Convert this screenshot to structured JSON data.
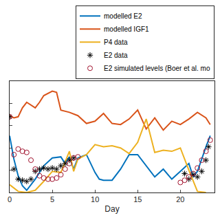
{
  "chart_data": {
    "type": "line",
    "x_label": "Day",
    "xlim": [
      0,
      24
    ],
    "xticks": [
      0,
      5,
      10,
      15,
      20
    ],
    "ylim": [
      0,
      1
    ],
    "yticks": [
      0,
      0.2,
      0.4,
      0.6,
      0.8,
      1
    ],
    "tick_labels": "x",
    "grid": false,
    "legend": "top right",
    "series": [
      {
        "name": "modelled E2",
        "type": "line",
        "color": "#0072BD",
        "line_style": "solid",
        "marker": "none",
        "x": [
          0,
          0.5,
          1,
          1.5,
          2,
          3,
          4,
          5,
          6,
          6.5,
          7,
          7.5,
          8,
          9,
          10,
          10.5,
          11,
          12,
          13,
          14,
          15,
          16,
          17,
          18,
          19,
          20,
          21,
          21.5,
          22,
          23,
          23.5
        ],
        "values": [
          0.51,
          0.3,
          0.15,
          0.06,
          0.02,
          0.12,
          0.24,
          0.31,
          0.32,
          0.26,
          0.32,
          0.21,
          0.31,
          0.34,
          0.18,
          0.12,
          0.11,
          0.11,
          0.21,
          0.34,
          0.34,
          0.24,
          0.14,
          0.21,
          0.12,
          0.19,
          0.26,
          0.14,
          0.19,
          0.41,
          0.51
        ]
      },
      {
        "name": "modelled IGF1",
        "type": "line",
        "color": "#D95319",
        "line_style": "solid",
        "marker": "none",
        "x": [
          0,
          0.5,
          1,
          1.5,
          2,
          3,
          3.5,
          4,
          5,
          5.5,
          6,
          7,
          8,
          9,
          10,
          11,
          12,
          13,
          14,
          15,
          16,
          17,
          18,
          19,
          20,
          21,
          22,
          23,
          23.5
        ],
        "values": [
          0.69,
          0.67,
          0.68,
          0.76,
          0.81,
          0.76,
          0.81,
          0.87,
          0.91,
          0.9,
          0.74,
          0.72,
          0.69,
          0.62,
          0.64,
          0.71,
          0.62,
          0.61,
          0.66,
          0.74,
          0.57,
          0.67,
          0.56,
          0.64,
          0.61,
          0.66,
          0.72,
          0.67,
          0.61
        ]
      },
      {
        "name": "P4 data",
        "type": "line",
        "color": "#EDB120",
        "line_style": "solid",
        "marker": "none",
        "x": [
          0,
          1,
          2,
          3,
          4,
          5,
          6,
          7,
          7.5,
          8,
          9,
          10,
          11,
          12,
          13,
          14,
          15,
          16,
          17,
          18,
          19,
          20,
          21,
          22,
          23
        ],
        "values": [
          0.07,
          0.01,
          0.0,
          0.02,
          0.1,
          0.19,
          0.18,
          0.37,
          0.19,
          0.3,
          0.34,
          0.43,
          0.41,
          0.42,
          0.4,
          0.35,
          0.45,
          0.66,
          0.36,
          0.38,
          0.37,
          0.4,
          0.2,
          0.01,
          0.0
        ]
      },
      {
        "name": "E2 data",
        "type": "scatter",
        "color": "#000000",
        "line_style": "none",
        "marker": "asterisk",
        "x": [
          0,
          0.5,
          1,
          1.5,
          2,
          2.5,
          3,
          3.5,
          4,
          4.5,
          5,
          5.5,
          6,
          6.5,
          7,
          7.5,
          20.5,
          21,
          21.5,
          22,
          22.5,
          23,
          23.3
        ],
        "values": [
          0.68,
          0.21,
          0.12,
          0.11,
          0.1,
          0.12,
          0.19,
          0.21,
          0.22,
          0.21,
          0.22,
          0.21,
          0.24,
          0.26,
          0.29,
          0.31,
          0.17,
          0.12,
          0.16,
          0.14,
          0.19,
          0.29,
          0.41
        ]
      },
      {
        "name": "E2 simulated levels (Boer et al. mo",
        "type": "scatter",
        "color": "#A2142F",
        "line_style": "none",
        "marker": "circle",
        "x": [
          0,
          0.5,
          1,
          1.5,
          2,
          2.5,
          3,
          3.5,
          4,
          4.5,
          5,
          5.5,
          6,
          6.5,
          7,
          7.5,
          8,
          20,
          20.5,
          21,
          21.5,
          22,
          22.5,
          23,
          23.5
        ],
        "values": [
          0.68,
          0.34,
          0.39,
          0.37,
          0.36,
          0.29,
          0.21,
          0.15,
          0.13,
          0.12,
          0.12,
          0.13,
          0.16,
          0.21,
          0.26,
          0.31,
          0.32,
          0.09,
          0.11,
          0.14,
          0.17,
          0.22,
          0.29,
          0.37,
          0.47
        ]
      }
    ]
  }
}
